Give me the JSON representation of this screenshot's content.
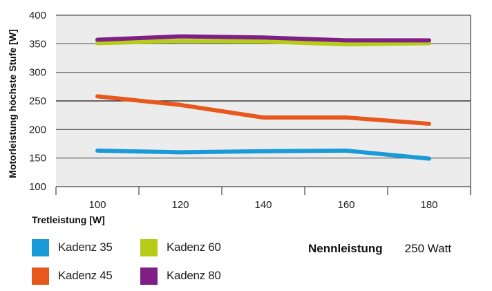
{
  "chart_data": {
    "type": "line",
    "title": "",
    "xlabel": "Tretleistung [W]",
    "ylabel": "Motorleistung höchste Stufe [W]",
    "categories": [
      "100",
      "120",
      "140",
      "160",
      "180"
    ],
    "y_ticks": [
      "100",
      "150",
      "200",
      "250",
      "300",
      "350",
      "400"
    ],
    "ylim": [
      100,
      400
    ],
    "grid": true,
    "legend_position": "bottom-left",
    "series": [
      {
        "name": "Kadenz 35",
        "color": "#1a9ad6",
        "values": [
          163,
          160,
          162,
          163,
          149
        ]
      },
      {
        "name": "Kadenz 45",
        "color": "#e8581c",
        "values": [
          258,
          243,
          221,
          221,
          210
        ]
      },
      {
        "name": "Kadenz 60",
        "color": "#b5cc18",
        "values": [
          351,
          355,
          354,
          349,
          351
        ]
      },
      {
        "name": "Kadenz 80",
        "color": "#7f1f86",
        "values": [
          357,
          363,
          361,
          356,
          356
        ]
      }
    ],
    "annotation": {
      "label": "Nennleistung",
      "value": "250 Watt"
    }
  },
  "colors": {
    "plot_background": "#ececec",
    "grid": "#555555",
    "axis": "#444444"
  }
}
